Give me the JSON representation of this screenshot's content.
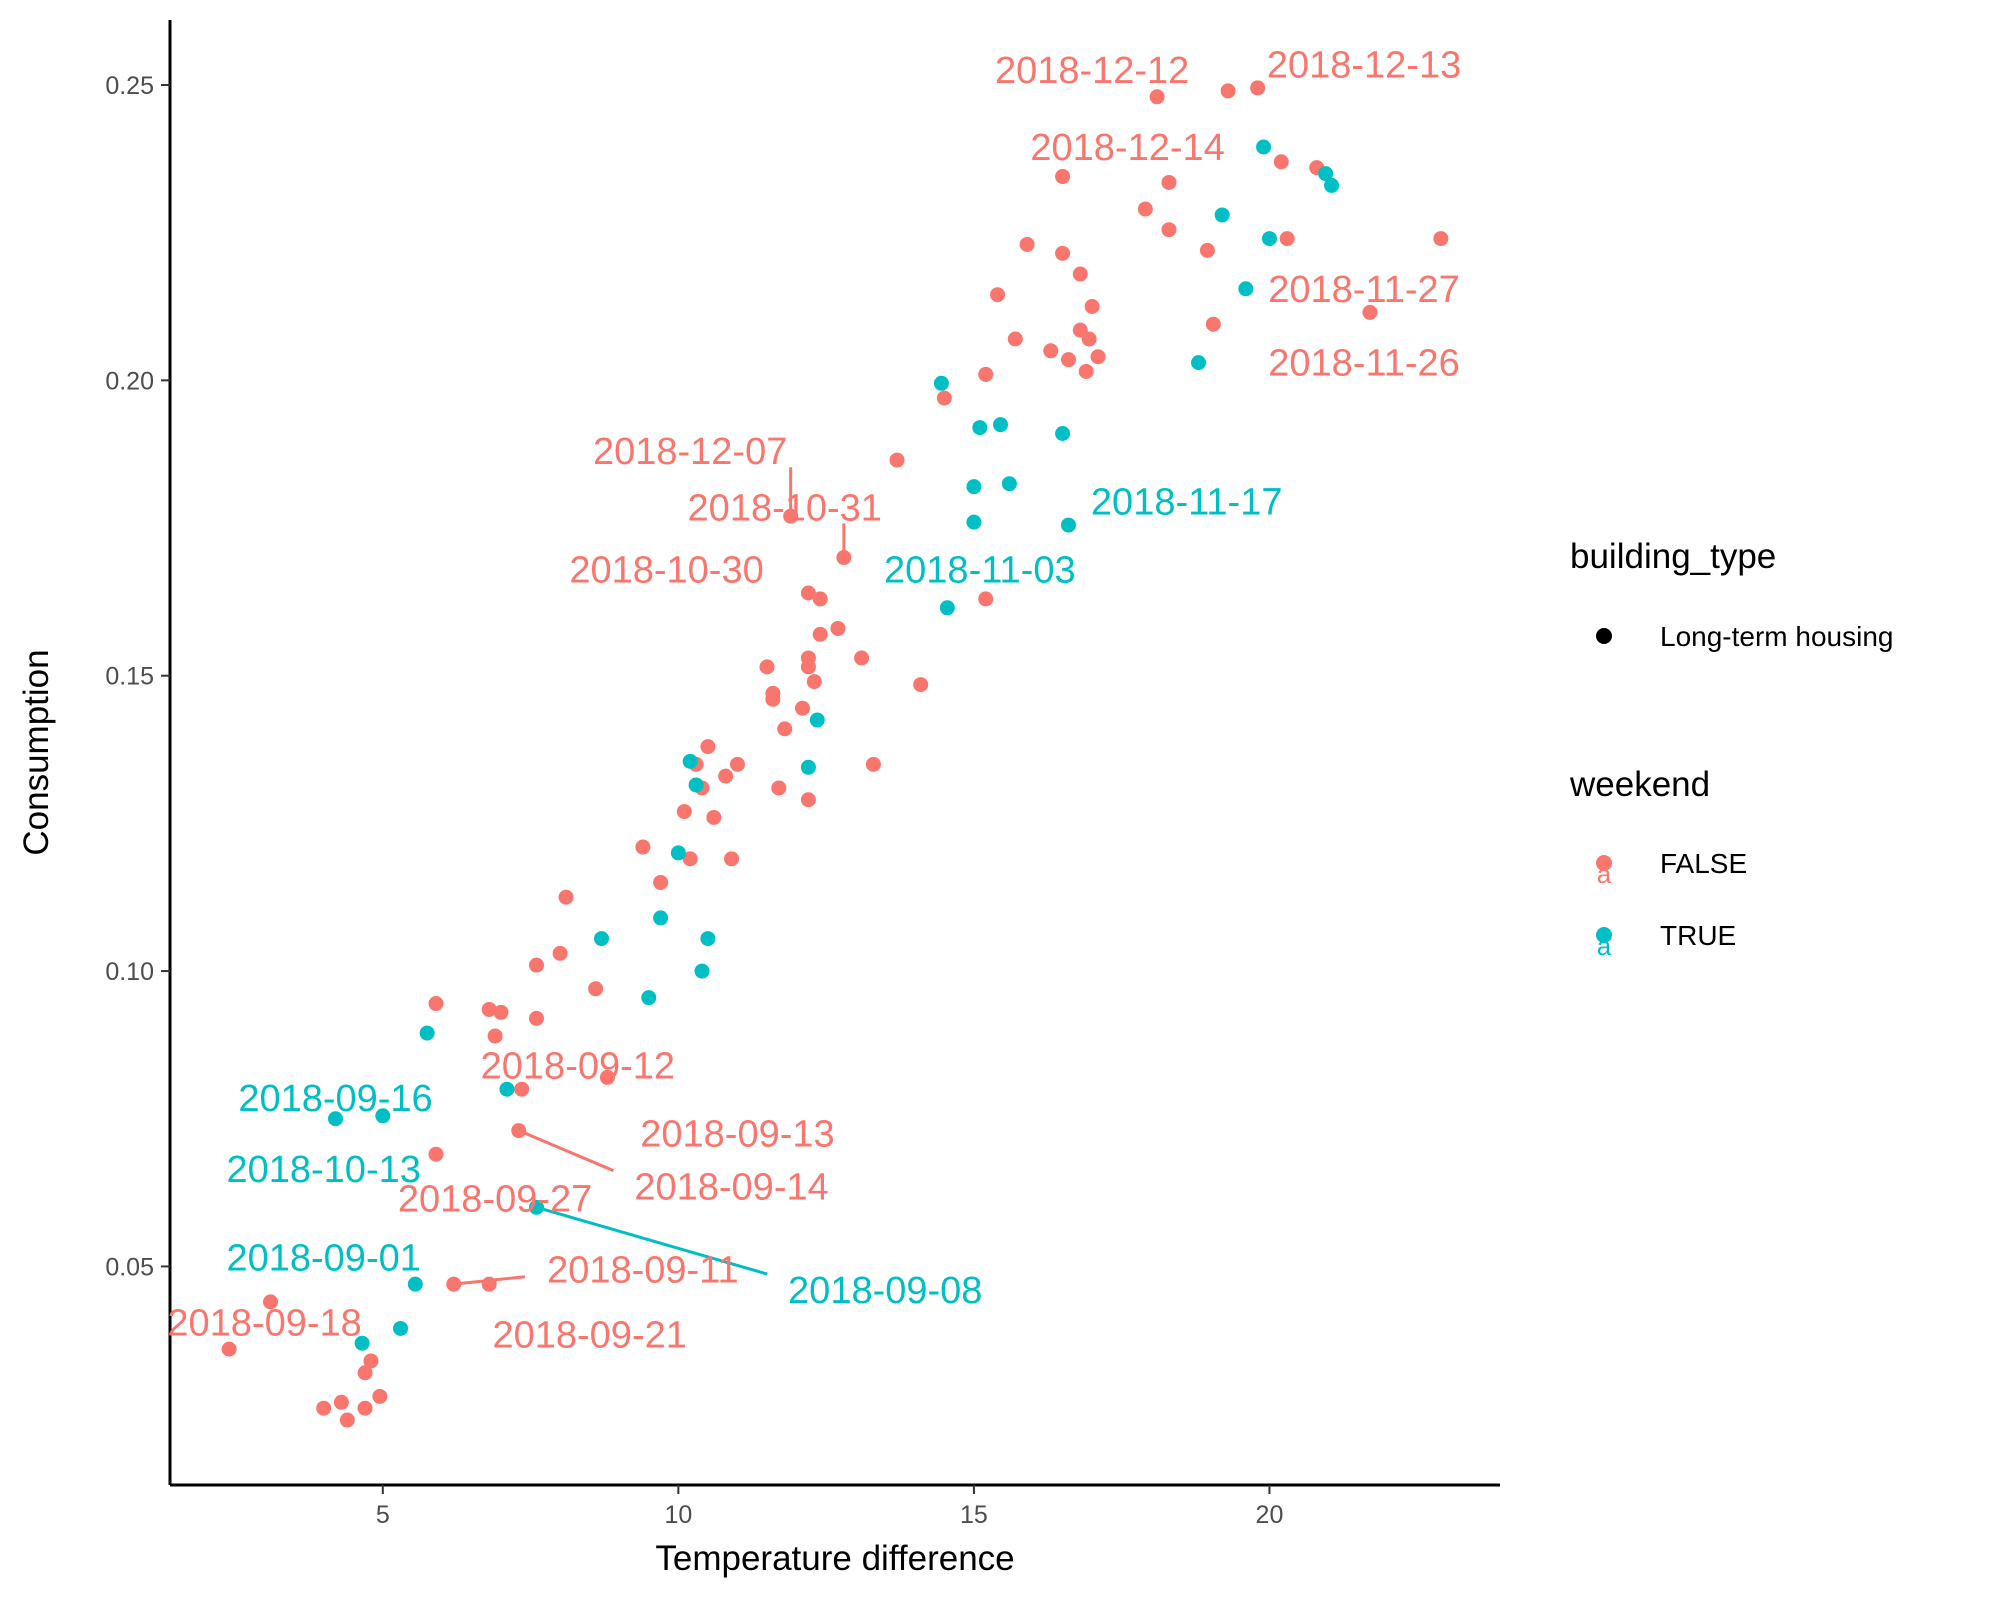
{
  "chart_data": {
    "type": "scatter",
    "xlabel": "Temperature difference",
    "ylabel": "Consumption",
    "xlim": [
      1.4,
      23.9
    ],
    "ylim": [
      0.013,
      0.261
    ],
    "xticks": [
      5,
      10,
      15,
      20
    ],
    "yticks": [
      0.05,
      0.1,
      0.15,
      0.2,
      0.25
    ],
    "xtick_labels": [
      "5",
      "10",
      "15",
      "20"
    ],
    "ytick_labels": [
      "0.05",
      "0.10",
      "0.15",
      "0.20",
      "0.25"
    ],
    "grid": false,
    "legend_position": "right",
    "colors": {
      "FALSE": "#F8766D",
      "TRUE": "#00BFC4"
    },
    "legend": {
      "building_type": {
        "title": "building_type",
        "items": [
          "Long-term housing"
        ]
      },
      "weekend": {
        "title": "weekend",
        "items": [
          "FALSE",
          "TRUE"
        ]
      }
    },
    "series": [
      {
        "name": "FALSE",
        "points": [
          [
            2.4,
            0.036
          ],
          [
            3.1,
            0.044
          ],
          [
            4.0,
            0.026
          ],
          [
            4.3,
            0.027
          ],
          [
            4.4,
            0.024
          ],
          [
            4.7,
            0.026
          ],
          [
            4.7,
            0.032
          ],
          [
            4.8,
            0.034
          ],
          [
            4.95,
            0.028
          ],
          [
            5.9,
            0.069
          ],
          [
            5.9,
            0.0945
          ],
          [
            6.2,
            0.047
          ],
          [
            6.8,
            0.047
          ],
          [
            6.8,
            0.0935
          ],
          [
            6.9,
            0.089
          ],
          [
            7.0,
            0.093
          ],
          [
            7.3,
            0.073
          ],
          [
            7.35,
            0.08
          ],
          [
            7.6,
            0.092
          ],
          [
            7.6,
            0.101
          ],
          [
            8.0,
            0.103
          ],
          [
            8.1,
            0.1125
          ],
          [
            8.6,
            0.097
          ],
          [
            8.8,
            0.082
          ],
          [
            9.4,
            0.121
          ],
          [
            9.7,
            0.115
          ],
          [
            10.1,
            0.127
          ],
          [
            10.2,
            0.119
          ],
          [
            10.3,
            0.135
          ],
          [
            10.4,
            0.131
          ],
          [
            10.5,
            0.138
          ],
          [
            10.6,
            0.126
          ],
          [
            10.8,
            0.133
          ],
          [
            10.9,
            0.119
          ],
          [
            11.0,
            0.135
          ],
          [
            11.5,
            0.1515
          ],
          [
            11.6,
            0.147
          ],
          [
            11.6,
            0.146
          ],
          [
            11.7,
            0.131
          ],
          [
            11.8,
            0.141
          ],
          [
            11.9,
            0.177
          ],
          [
            12.1,
            0.1445
          ],
          [
            12.2,
            0.164
          ],
          [
            12.2,
            0.153
          ],
          [
            12.2,
            0.1515
          ],
          [
            12.2,
            0.129
          ],
          [
            12.3,
            0.149
          ],
          [
            12.4,
            0.163
          ],
          [
            12.4,
            0.157
          ],
          [
            12.7,
            0.158
          ],
          [
            12.8,
            0.17
          ],
          [
            13.1,
            0.153
          ],
          [
            13.3,
            0.135
          ],
          [
            13.7,
            0.1865
          ],
          [
            14.1,
            0.1485
          ],
          [
            14.5,
            0.197
          ],
          [
            15.2,
            0.201
          ],
          [
            15.2,
            0.163
          ],
          [
            15.4,
            0.2145
          ],
          [
            15.7,
            0.207
          ],
          [
            15.9,
            0.223
          ],
          [
            16.3,
            0.205
          ],
          [
            16.5,
            0.2215
          ],
          [
            16.5,
            0.2345
          ],
          [
            16.6,
            0.2035
          ],
          [
            16.8,
            0.218
          ],
          [
            16.8,
            0.2085
          ],
          [
            16.9,
            0.2015
          ],
          [
            16.95,
            0.207
          ],
          [
            17.0,
            0.2125
          ],
          [
            17.1,
            0.204
          ],
          [
            17.9,
            0.229
          ],
          [
            18.1,
            0.248
          ],
          [
            18.3,
            0.2335
          ],
          [
            18.3,
            0.2255
          ],
          [
            18.95,
            0.222
          ],
          [
            19.05,
            0.2095
          ],
          [
            19.3,
            0.249
          ],
          [
            19.8,
            0.2495
          ],
          [
            20.2,
            0.237
          ],
          [
            20.3,
            0.224
          ],
          [
            20.8,
            0.236
          ],
          [
            21.7,
            0.2115
          ],
          [
            22.9,
            0.224
          ]
        ]
      },
      {
        "name": "TRUE",
        "points": [
          [
            4.2,
            0.075
          ],
          [
            4.65,
            0.037
          ],
          [
            5.0,
            0.0755
          ],
          [
            5.3,
            0.0395
          ],
          [
            5.55,
            0.047
          ],
          [
            5.75,
            0.0895
          ],
          [
            7.1,
            0.08
          ],
          [
            7.6,
            0.06
          ],
          [
            8.7,
            0.1055
          ],
          [
            9.5,
            0.0955
          ],
          [
            9.7,
            0.109
          ],
          [
            10.0,
            0.12
          ],
          [
            10.2,
            0.1355
          ],
          [
            10.3,
            0.1315
          ],
          [
            10.4,
            0.1
          ],
          [
            10.5,
            0.1055
          ],
          [
            12.2,
            0.1345
          ],
          [
            12.35,
            0.1425
          ],
          [
            14.45,
            0.1995
          ],
          [
            14.55,
            0.1615
          ],
          [
            15.0,
            0.182
          ],
          [
            15.0,
            0.176
          ],
          [
            15.1,
            0.192
          ],
          [
            15.45,
            0.1925
          ],
          [
            15.6,
            0.1825
          ],
          [
            16.5,
            0.191
          ],
          [
            16.6,
            0.1755
          ],
          [
            18.8,
            0.203
          ],
          [
            19.2,
            0.228
          ],
          [
            19.6,
            0.2155
          ],
          [
            19.9,
            0.2395
          ],
          [
            20.0,
            0.224
          ],
          [
            20.95,
            0.235
          ],
          [
            21.05,
            0.233
          ]
        ]
      }
    ],
    "annotations": [
      {
        "text": "2018-12-12",
        "weekend": "FALSE",
        "point": [
          18.1,
          0.248
        ],
        "label_at": [
          17.0,
          0.2525
        ],
        "leader": false
      },
      {
        "text": "2018-12-13",
        "weekend": "FALSE",
        "point": [
          19.8,
          0.2495
        ],
        "label_at": [
          21.6,
          0.2535
        ],
        "leader": false
      },
      {
        "text": "2018-12-14",
        "weekend": "FALSE",
        "point": [
          19.3,
          0.249
        ],
        "label_at": [
          17.6,
          0.2395
        ],
        "leader": false
      },
      {
        "text": "2018-11-27",
        "weekend": "FALSE",
        "point": [
          22.9,
          0.224
        ],
        "label_at": [
          21.6,
          0.2155
        ],
        "leader": false
      },
      {
        "text": "2018-11-26",
        "weekend": "FALSE",
        "point": [
          21.7,
          0.2115
        ],
        "label_at": [
          21.6,
          0.203
        ],
        "leader": false
      },
      {
        "text": "2018-12-07",
        "weekend": "FALSE",
        "point": [
          11.9,
          0.177
        ],
        "label_at": [
          10.2,
          0.188
        ],
        "leader": true
      },
      {
        "text": "2018-10-31",
        "weekend": "FALSE",
        "point": [
          12.8,
          0.17
        ],
        "label_at": [
          11.8,
          0.1785
        ],
        "leader": true
      },
      {
        "text": "2018-11-17",
        "weekend": "TRUE",
        "point": [
          16.6,
          0.1755
        ],
        "label_at": [
          18.6,
          0.1795
        ],
        "leader": false
      },
      {
        "text": "2018-10-30",
        "weekend": "FALSE",
        "point": [
          12.8,
          0.17
        ],
        "label_at": [
          9.8,
          0.168
        ],
        "leader": false
      },
      {
        "text": "2018-11-03",
        "weekend": "TRUE",
        "point": [
          14.55,
          0.1615
        ],
        "label_at": [
          15.1,
          0.168
        ],
        "leader": false
      },
      {
        "text": "2018-09-12",
        "weekend": "FALSE",
        "point": [
          6.9,
          0.089
        ],
        "label_at": [
          8.3,
          0.084
        ],
        "leader": false
      },
      {
        "text": "2018-09-16",
        "weekend": "TRUE",
        "point": [
          4.2,
          0.075
        ],
        "label_at": [
          4.2,
          0.0785
        ],
        "leader": false
      },
      {
        "text": "2018-09-13",
        "weekend": "FALSE",
        "point": [
          8.8,
          0.082
        ],
        "label_at": [
          11.0,
          0.0725
        ],
        "leader": false
      },
      {
        "text": "2018-10-13",
        "weekend": "TRUE",
        "point": [
          5.0,
          0.0755
        ],
        "label_at": [
          4.0,
          0.0665
        ],
        "leader": false
      },
      {
        "text": "2018-09-14",
        "weekend": "FALSE",
        "point": [
          7.3,
          0.073
        ],
        "label_at": [
          10.9,
          0.0635
        ],
        "leader": true
      },
      {
        "text": "2018-09-27",
        "weekend": "FALSE",
        "point": [
          7.35,
          0.08
        ],
        "label_at": [
          6.9,
          0.0615
        ],
        "leader": false
      },
      {
        "text": "2018-09-01",
        "weekend": "TRUE",
        "point": [
          5.55,
          0.047
        ],
        "label_at": [
          4.0,
          0.0515
        ],
        "leader": false
      },
      {
        "text": "2018-09-11",
        "weekend": "FALSE",
        "point": [
          6.2,
          0.047
        ],
        "label_at": [
          9.4,
          0.0495
        ],
        "leader": true
      },
      {
        "text": "2018-09-08",
        "weekend": "TRUE",
        "point": [
          7.6,
          0.06
        ],
        "label_at": [
          13.5,
          0.046
        ],
        "leader": true
      },
      {
        "text": "2018-09-18",
        "weekend": "FALSE",
        "point": [
          3.1,
          0.044
        ],
        "label_at": [
          3.0,
          0.0405
        ],
        "leader": false
      },
      {
        "text": "2018-09-21",
        "weekend": "FALSE",
        "point": [
          6.8,
          0.047
        ],
        "label_at": [
          8.5,
          0.0385
        ],
        "leader": false
      }
    ]
  }
}
